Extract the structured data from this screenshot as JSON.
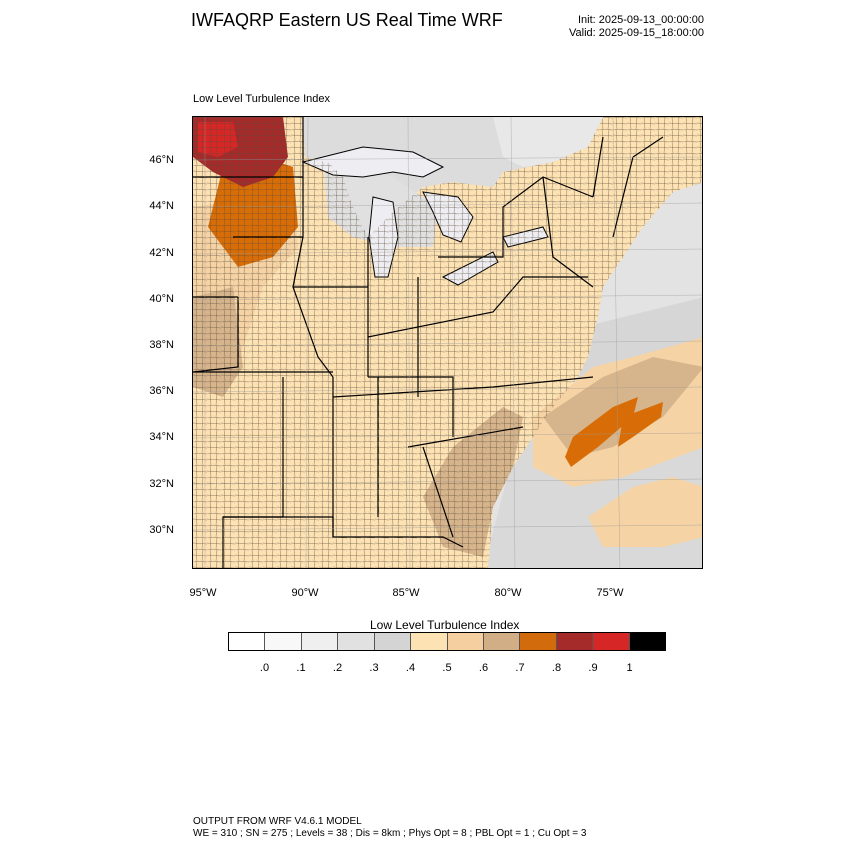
{
  "header": {
    "title": "IWFAQRP Eastern US Real Time WRF",
    "init": "Init: 2025-09-13_00:00:00",
    "valid": "Valid: 2025-09-15_18:00:00"
  },
  "map": {
    "panel_label": "Low Level Turbulence Index",
    "lat_labels": [
      "46°N",
      "44°N",
      "42°N",
      "40°N",
      "38°N",
      "36°N",
      "34°N",
      "32°N",
      "30°N"
    ],
    "lon_labels": [
      "95°W",
      "90°W",
      "85°W",
      "80°W",
      "75°W"
    ],
    "colors": {
      "water": "#e9e9ee",
      "lake": "#eeeef2",
      "land_base": "#fde2b4",
      "level_05": "#f6d3a4",
      "level_06": "#d7b58c",
      "level_07": "#d86d07",
      "level_08": "#a52a2a",
      "level_09": "#d62626",
      "grey_02": "#dcdcdc",
      "grey_03": "#d0d0d0",
      "border": "#000000"
    }
  },
  "colorbar": {
    "title": "Low Level Turbulence Index",
    "colors": [
      "#ffffff",
      "#f8f8f8",
      "#efefef",
      "#e1e1e1",
      "#d4d4d4",
      "#fde2b4",
      "#f5cfa0",
      "#d2ae87",
      "#d26b0c",
      "#a52a2a",
      "#d62626",
      "#000000"
    ],
    "labels": [
      ".0",
      ".1",
      ".2",
      ".3",
      ".4",
      ".5",
      ".6",
      ".7",
      ".8",
      ".9",
      "1"
    ]
  },
  "footer": {
    "line1": "OUTPUT FROM WRF V4.6.1 MODEL",
    "line2": "WE = 310 ; SN = 275 ; Levels = 38 ; Dis = 8km ; Phys Opt = 8 ; PBL Opt = 1 ; Cu Opt = 3"
  }
}
